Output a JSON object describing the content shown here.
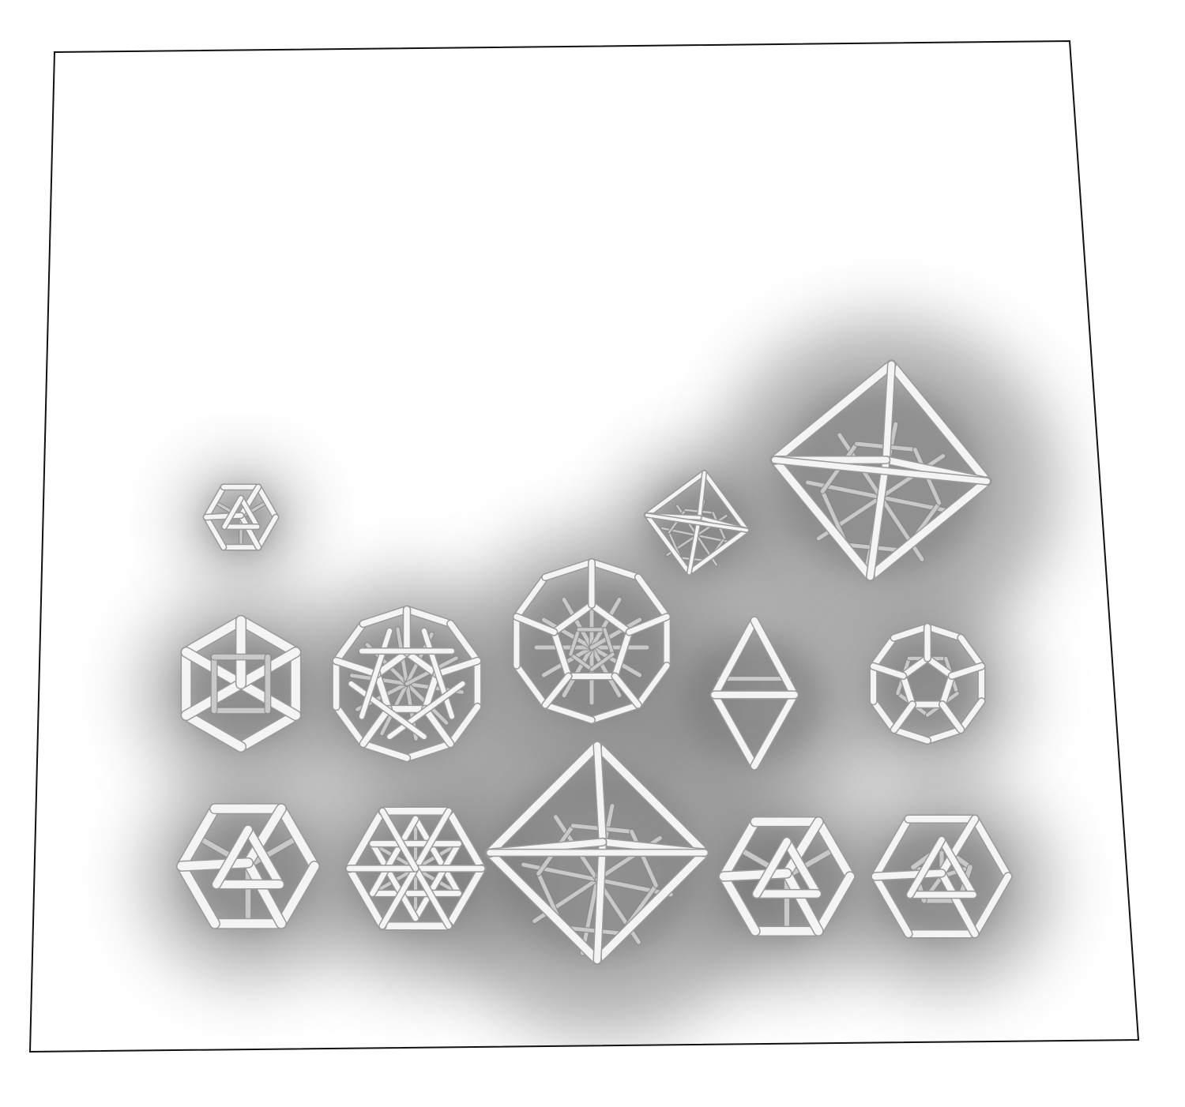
{
  "scene": {
    "background_color": "#ffffff",
    "board_fill": "#ffffff",
    "board_outline_color": "#111111",
    "shadow_color": "#6f6f6f",
    "strut_color": "#f4f4f4"
  },
  "objects": [
    {
      "name": "small-icosahedron-frame",
      "kind": "icosahedron"
    },
    {
      "name": "small-octahedron-frame",
      "kind": "octahedron-nested"
    },
    {
      "name": "large-octahedron-frame",
      "kind": "octahedron-nested"
    },
    {
      "name": "cuboctahedron-frame",
      "kind": "cuboctahedron"
    },
    {
      "name": "icosidodecahedron-frame",
      "kind": "icosidodecahedron"
    },
    {
      "name": "dodecahedron-nested-frame",
      "kind": "dodecahedron-nested"
    },
    {
      "name": "octahedron-frame",
      "kind": "octahedron"
    },
    {
      "name": "dodecahedron-frame",
      "kind": "dodecahedron"
    },
    {
      "name": "icosahedron-frame",
      "kind": "icosahedron"
    },
    {
      "name": "icosahedron-stellated-frame",
      "kind": "icosahedron-star"
    },
    {
      "name": "large-tetrahedral-frame",
      "kind": "octahedron-nested"
    },
    {
      "name": "icosahedron-frame-right",
      "kind": "icosahedron"
    },
    {
      "name": "icosahedron-dodecahedron-compound-frame",
      "kind": "icosahedron-compound"
    }
  ]
}
